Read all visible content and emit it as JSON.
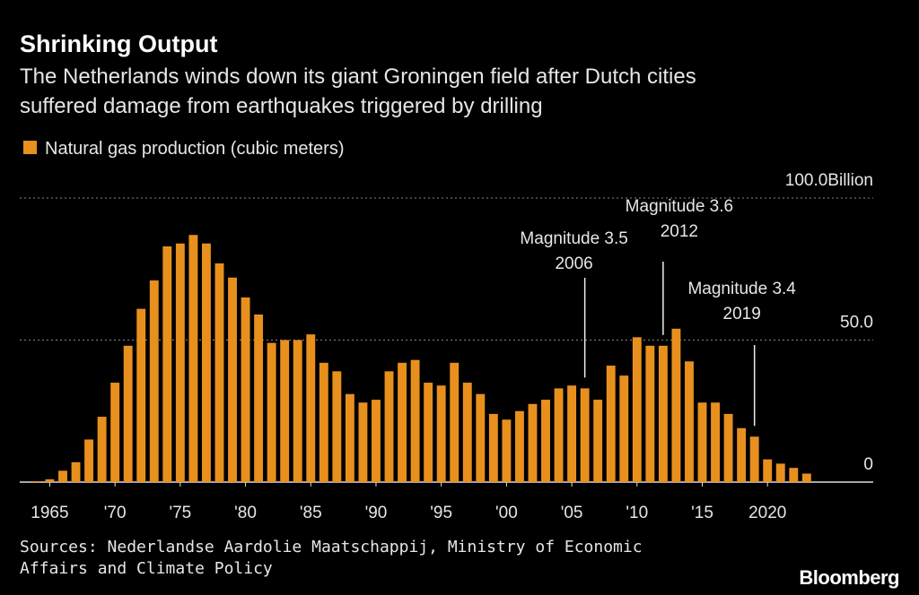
{
  "chart_data": {
    "type": "bar",
    "title": "Shrinking Output",
    "subtitle": "The Netherlands winds down its giant Groningen field after Dutch cities suffered damage from earthquakes triggered by drilling",
    "source": "Sources: Nederlandse Aardolie Maatschappij, Ministry of Economic Affairs and Climate Policy",
    "brand": "Bloomberg",
    "x": [
      1964,
      1965,
      1966,
      1967,
      1968,
      1969,
      1970,
      1971,
      1972,
      1973,
      1974,
      1975,
      1976,
      1977,
      1978,
      1979,
      1980,
      1981,
      1982,
      1983,
      1984,
      1985,
      1986,
      1987,
      1988,
      1989,
      1990,
      1991,
      1992,
      1993,
      1994,
      1995,
      1996,
      1997,
      1998,
      1999,
      2000,
      2001,
      2002,
      2003,
      2004,
      2005,
      2006,
      2007,
      2008,
      2009,
      2010,
      2011,
      2012,
      2013,
      2014,
      2015,
      2016,
      2017,
      2018,
      2019,
      2020,
      2021,
      2022,
      2023
    ],
    "series": [
      {
        "name": "Natural gas production (cubic meters)",
        "color": "#e8901e",
        "values": [
          0.3,
          1,
          4,
          7,
          15,
          23,
          35,
          48,
          61,
          71,
          83,
          84,
          87,
          84,
          77,
          72,
          65,
          59,
          49,
          50,
          50,
          52,
          42,
          39,
          31,
          28,
          29,
          39,
          42,
          43,
          35,
          34,
          42,
          35,
          31,
          24,
          22,
          25,
          27.5,
          29,
          33,
          34,
          33,
          29,
          41,
          37.5,
          51,
          48,
          48,
          54,
          42.5,
          28,
          28,
          24,
          19,
          16,
          8,
          6.5,
          5,
          3
        ]
      }
    ],
    "xlim": [
      1962.7,
      2028.1
    ],
    "xticks": [
      1965,
      {
        "value": 1970,
        "label": "'70"
      },
      {
        "value": 1975,
        "label": "'75"
      },
      {
        "value": 1980,
        "label": "'80"
      },
      {
        "value": 1985,
        "label": "'85"
      },
      {
        "value": 1990,
        "label": "'90"
      },
      {
        "value": 1995,
        "label": "'95"
      },
      {
        "value": 2000,
        "label": "'00"
      },
      {
        "value": 2005,
        "label": "'05"
      },
      {
        "value": 2010,
        "label": "'10"
      },
      {
        "value": 2015,
        "label": "'15"
      },
      2020
    ],
    "ylim": [
      0,
      100
    ],
    "yticks": [
      0,
      {
        "value": 50,
        "label": "50.0"
      },
      {
        "value": 100,
        "label": "100.0Billion"
      }
    ],
    "grid": true,
    "annotations": [
      {
        "label": "Magnitude 3.5",
        "year": "2006"
      },
      {
        "label": "Magnitude 3.6",
        "year": "2012"
      },
      {
        "label": "Magnitude 3.4",
        "year": "2019"
      }
    ]
  }
}
